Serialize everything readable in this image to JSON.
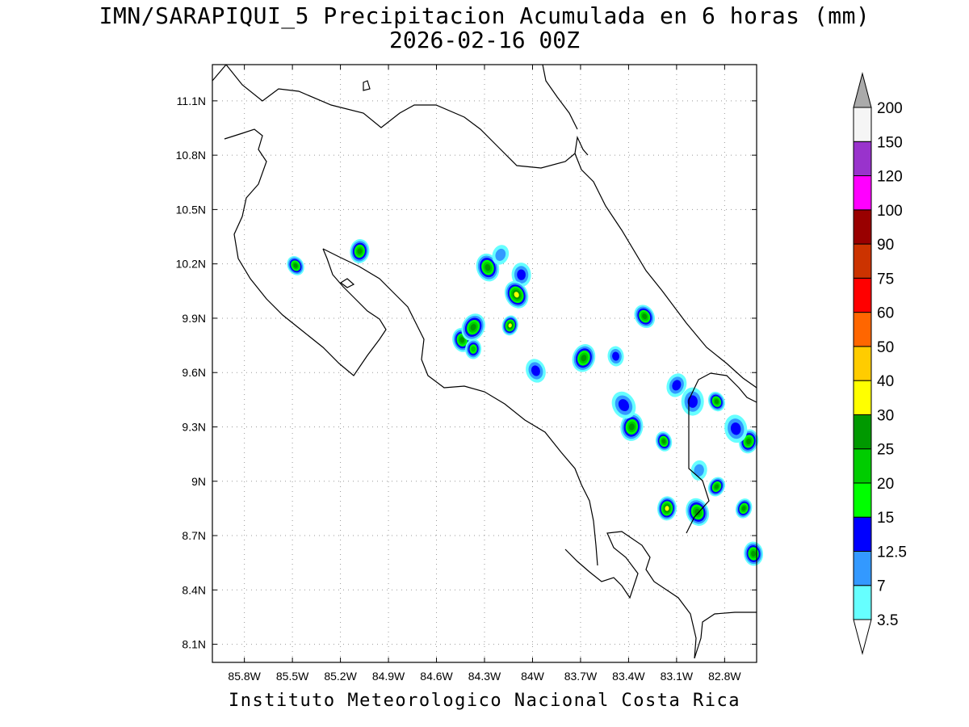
{
  "title_line1": "IMN/SARAPIQUI_5 Precipitacion Acumulada en 6 horas (mm)",
  "title_line2": "2026-02-16 00Z",
  "footer": "Instituto Meteorologico Nacional Costa Rica",
  "map": {
    "lon_range": [
      -86.0,
      -82.6
    ],
    "lat_range": [
      8.0,
      11.3
    ],
    "lon_ticks": [
      "85.8W",
      "85.5W",
      "85.2W",
      "84.9W",
      "84.6W",
      "84.3W",
      "84W",
      "83.7W",
      "83.4W",
      "83.1W",
      "82.8W"
    ],
    "lon_tick_values": [
      -85.8,
      -85.5,
      -85.2,
      -84.9,
      -84.6,
      -84.3,
      -84.0,
      -83.7,
      -83.4,
      -83.1,
      -82.8
    ],
    "lat_ticks": [
      "11.1N",
      "10.8N",
      "10.5N",
      "10.2N",
      "9.9N",
      "9.6N",
      "9.3N",
      "9N",
      "8.7N",
      "8.4N",
      "8.1N"
    ],
    "lat_tick_values": [
      11.1,
      10.8,
      10.5,
      10.2,
      9.9,
      9.6,
      9.3,
      9.0,
      8.7,
      8.4,
      8.1
    ],
    "grid": true,
    "rain_cells": [
      {
        "lon": -85.48,
        "lat": 10.19,
        "peak": 25
      },
      {
        "lon": -85.08,
        "lat": 10.27,
        "peak": 25
      },
      {
        "lon": -84.28,
        "lat": 10.18,
        "peak": 25
      },
      {
        "lon": -84.2,
        "lat": 10.25,
        "peak": 7
      },
      {
        "lon": -84.07,
        "lat": 10.14,
        "peak": 12.5
      },
      {
        "lon": -84.1,
        "lat": 10.03,
        "peak": 30
      },
      {
        "lon": -84.14,
        "lat": 9.86,
        "peak": 30
      },
      {
        "lon": -84.44,
        "lat": 9.78,
        "peak": 25
      },
      {
        "lon": -84.37,
        "lat": 9.85,
        "peak": 25
      },
      {
        "lon": -84.37,
        "lat": 9.73,
        "peak": 20
      },
      {
        "lon": -83.98,
        "lat": 9.61,
        "peak": 12.5
      },
      {
        "lon": -83.68,
        "lat": 9.68,
        "peak": 25
      },
      {
        "lon": -83.48,
        "lat": 9.69,
        "peak": 12.5
      },
      {
        "lon": -83.3,
        "lat": 9.91,
        "peak": 25
      },
      {
        "lon": -83.38,
        "lat": 9.3,
        "peak": 25
      },
      {
        "lon": -83.18,
        "lat": 9.22,
        "peak": 25
      },
      {
        "lon": -83.1,
        "lat": 9.53,
        "peak": 12.5
      },
      {
        "lon": -83.0,
        "lat": 9.44,
        "peak": 12.5
      },
      {
        "lon": -82.85,
        "lat": 9.44,
        "peak": 25
      },
      {
        "lon": -82.65,
        "lat": 9.22,
        "peak": 25
      },
      {
        "lon": -82.73,
        "lat": 9.29,
        "peak": 12.5
      },
      {
        "lon": -82.85,
        "lat": 8.97,
        "peak": 25
      },
      {
        "lon": -83.16,
        "lat": 8.85,
        "peak": 30
      },
      {
        "lon": -82.97,
        "lat": 8.83,
        "peak": 25
      },
      {
        "lon": -82.68,
        "lat": 8.85,
        "peak": 25
      },
      {
        "lon": -82.62,
        "lat": 8.6,
        "peak": 25
      },
      {
        "lon": -83.43,
        "lat": 9.42,
        "peak": 12.5
      },
      {
        "lon": -82.96,
        "lat": 9.06,
        "peak": 7
      }
    ]
  },
  "colorbar": {
    "labels": [
      "3.5",
      "7",
      "12.5",
      "15",
      "20",
      "25",
      "30",
      "40",
      "50",
      "60",
      "75",
      "90",
      "100",
      "120",
      "150",
      "200"
    ],
    "colors": [
      "#66ffff",
      "#3399ff",
      "#0000ff",
      "#00ff00",
      "#00cc00",
      "#009900",
      "#ffff00",
      "#ffcc00",
      "#ff6600",
      "#ff0000",
      "#cc3300",
      "#990000",
      "#ff00ff",
      "#9933cc",
      "#f5f5f5"
    ],
    "under_color": "#ffffff",
    "over_color": "#aaaaaa"
  }
}
